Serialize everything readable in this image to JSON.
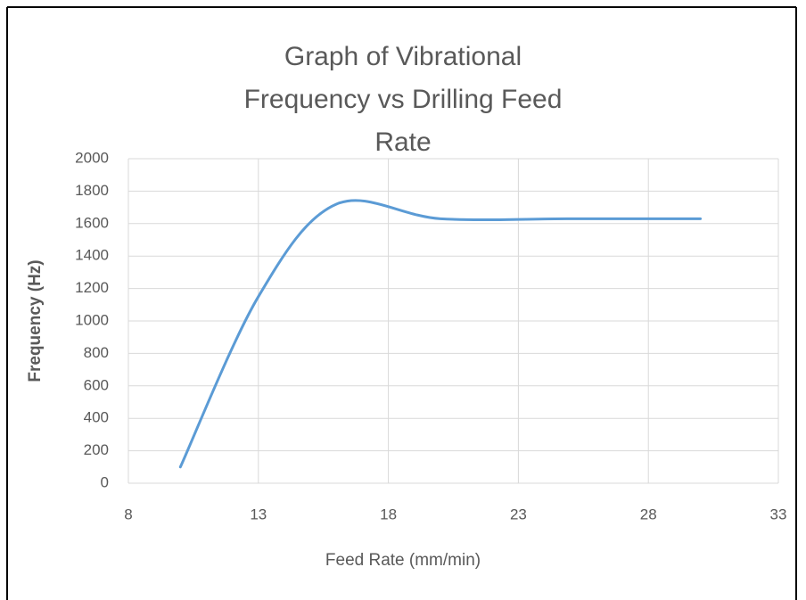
{
  "chart_data": {
    "type": "line",
    "title": "Graph of Vibrational Frequency vs Drilling Feed Rate",
    "x_label": "Feed Rate (mm/min)",
    "y_label": "Frequency (Hz)",
    "x": [
      10,
      13,
      16,
      20,
      25,
      30
    ],
    "series": [
      {
        "name": "Frequency",
        "color": "#5b9bd5",
        "values": [
          100,
          1150,
          1720,
          1630,
          1630,
          1630
        ]
      }
    ],
    "xlim": [
      8,
      33
    ],
    "xticks": [
      8,
      13,
      18,
      23,
      28,
      33
    ],
    "ylim": [
      0,
      2000
    ],
    "yticks": [
      0,
      200,
      400,
      600,
      800,
      1000,
      1200,
      1400,
      1600,
      1800,
      2000
    ],
    "grid": true,
    "smooth": true
  }
}
